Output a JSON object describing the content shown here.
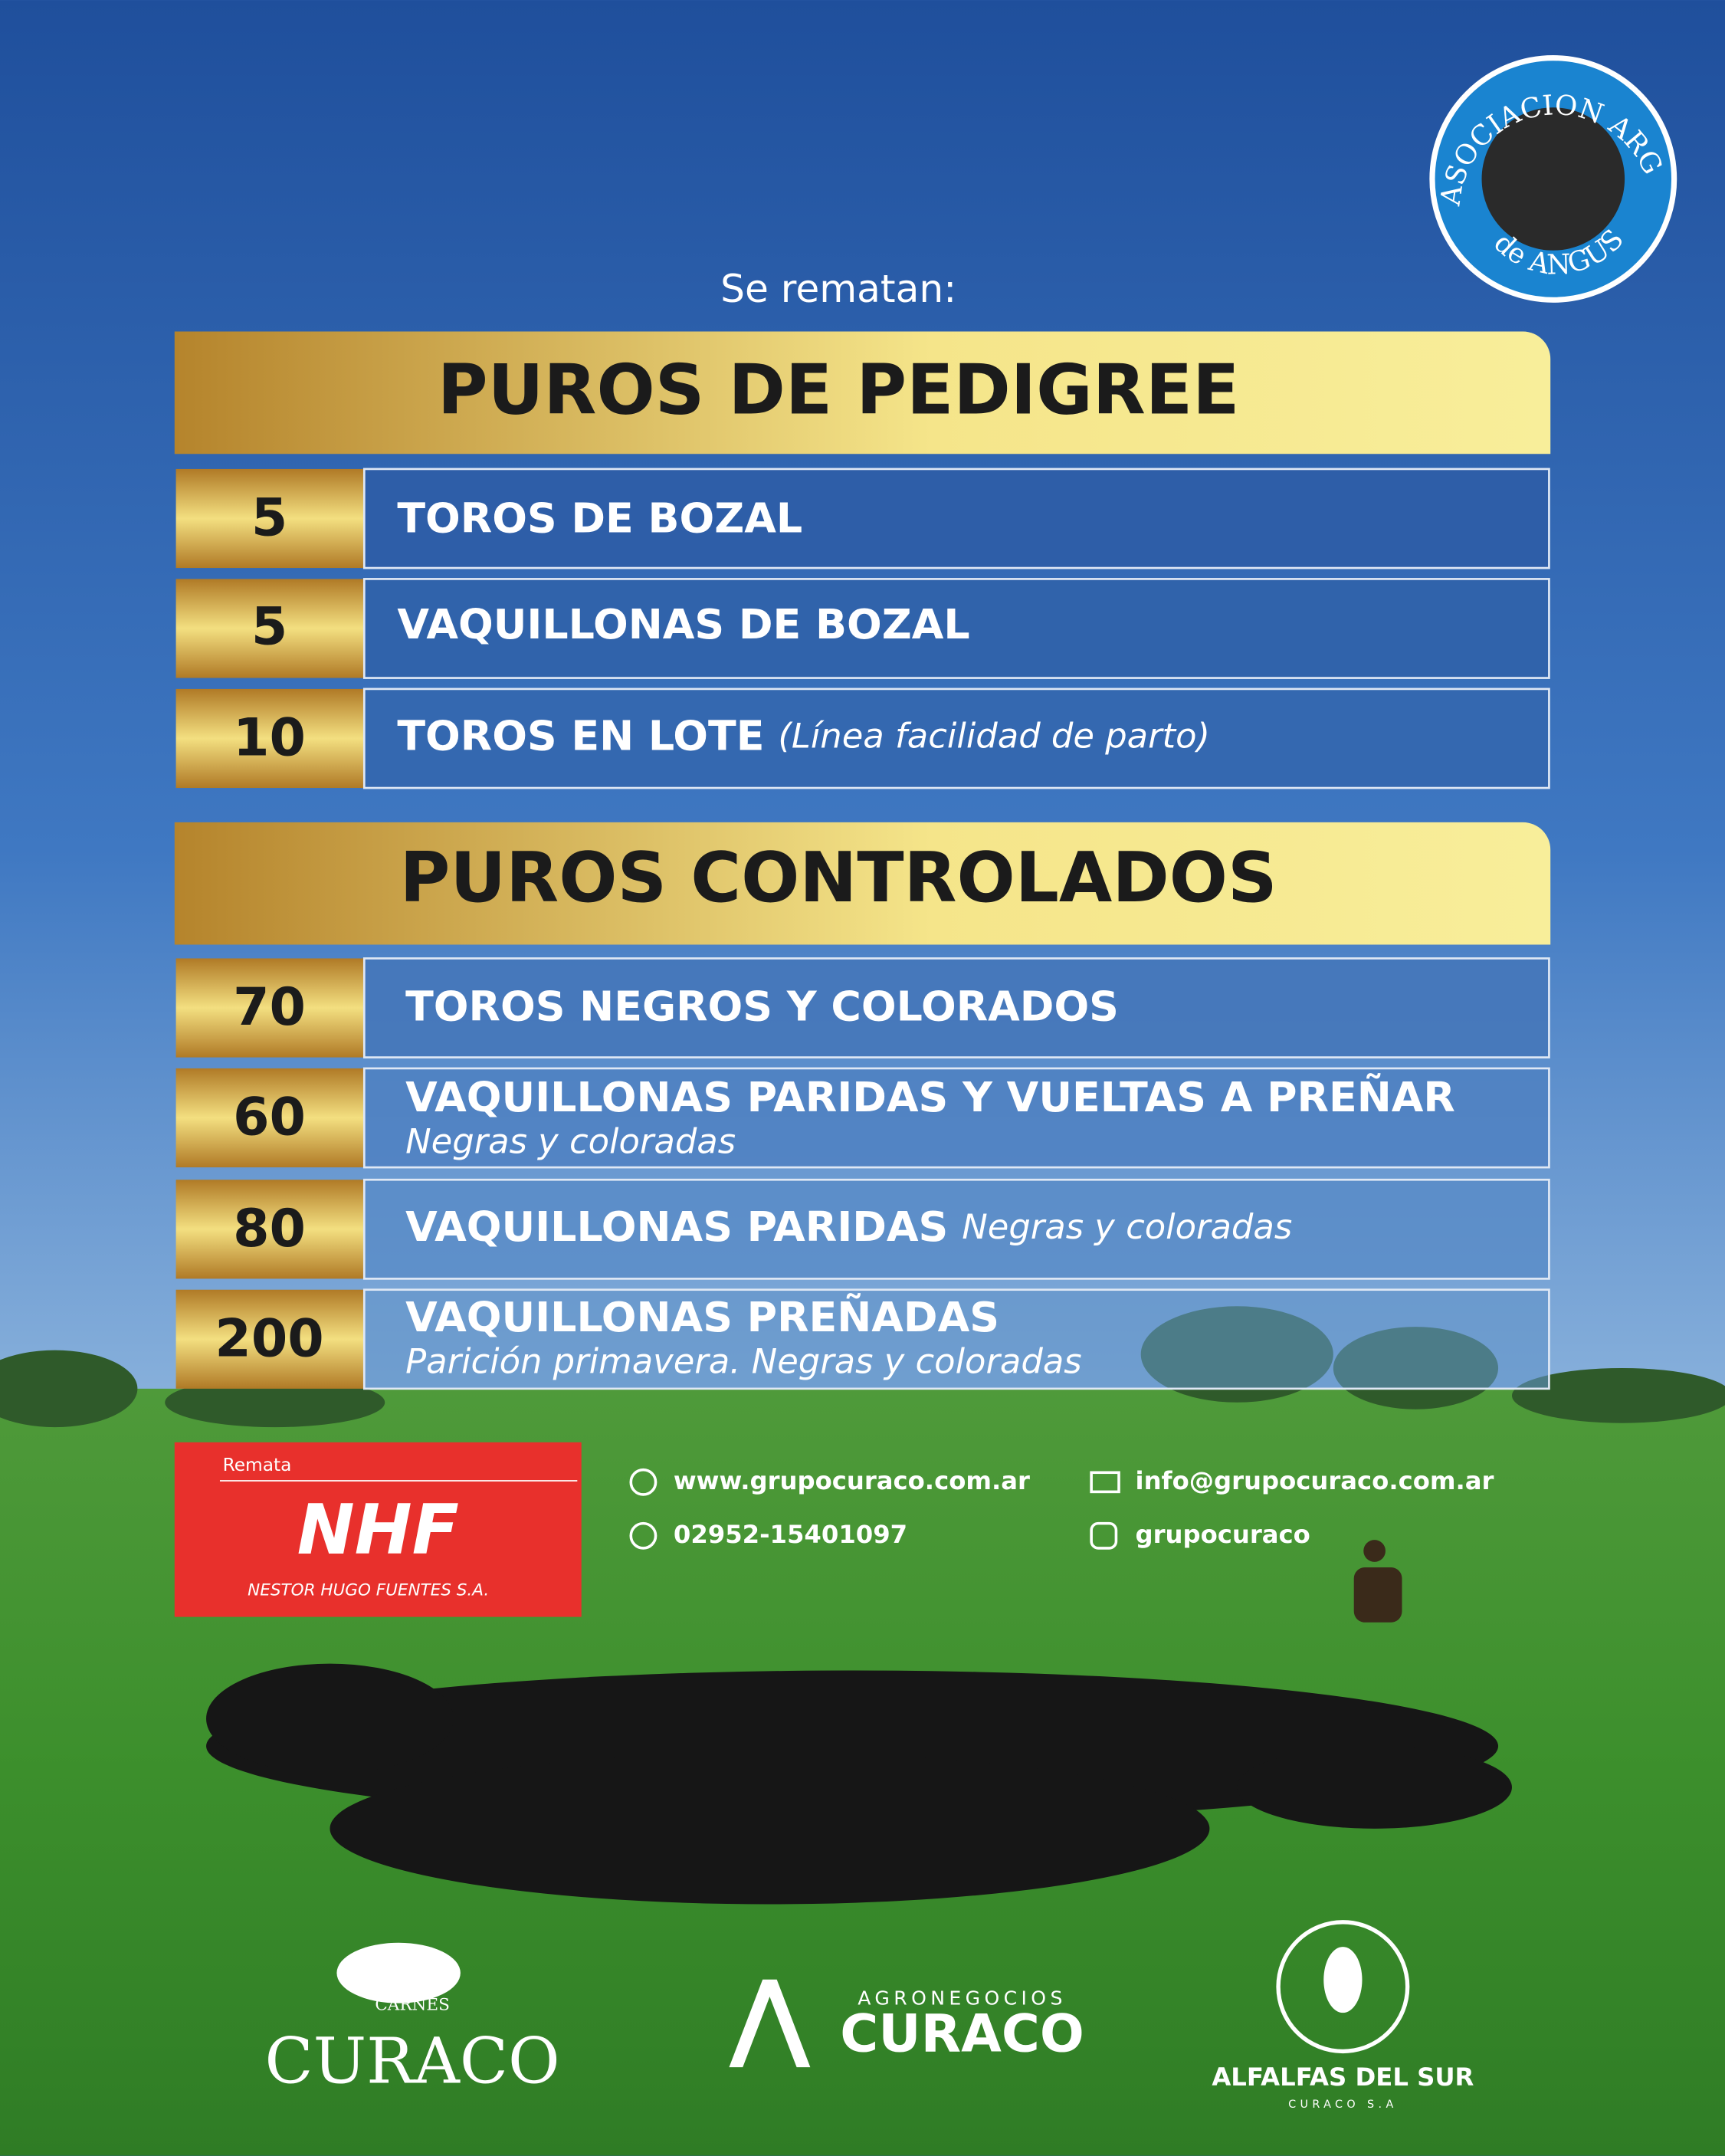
{
  "header": {
    "logo": {
      "top": "ASOCIACION ARGENTINA",
      "bottom": "de ANGUS"
    },
    "intro": "Se rematan:"
  },
  "sections": [
    {
      "title": "PUROS DE PEDIGREE",
      "items": [
        {
          "quantity": 5,
          "label": "TOROS DE BOZAL"
        },
        {
          "quantity": 5,
          "label": "VAQUILLONAS DE BOZAL"
        },
        {
          "quantity": 10,
          "label": "TOROS EN LOTE",
          "note": "(Línea facilidad de parto)"
        }
      ]
    },
    {
      "title": "PUROS CONTROLADOS",
      "items": [
        {
          "quantity": 70,
          "label": "TOROS NEGROS Y COLORADOS"
        },
        {
          "quantity": 60,
          "label": "VAQUILLONAS PARIDAS Y VUELTAS A PREÑAR",
          "note": "Negras y coloradas"
        },
        {
          "quantity": 80,
          "label": "VAQUILLONAS PARIDAS",
          "note": "Negras y coloradas"
        },
        {
          "quantity": 200,
          "label": "VAQUILLONAS PREÑADAS",
          "note": "Parición primavera. Negras y coloradas"
        }
      ]
    }
  ],
  "auctioneer": {
    "caption": "Remata",
    "logo": "NHF",
    "name": "NESTOR HUGO FUENTES S.A."
  },
  "contacts": {
    "web": "www.grupocuraco.com.ar",
    "email": "info@grupocuraco.com.ar",
    "phone": "02952-15401097",
    "instagram": "grupocuraco"
  },
  "footer": {
    "carnes": {
      "small": "CARNES",
      "name": "CURACO"
    },
    "agronegocios": {
      "small": "AGRONEGOCIOS",
      "name": "CURACO"
    },
    "alfalfas": {
      "name": "ALFALFAS DEL SUR",
      "small": "CURACO S.A"
    }
  }
}
